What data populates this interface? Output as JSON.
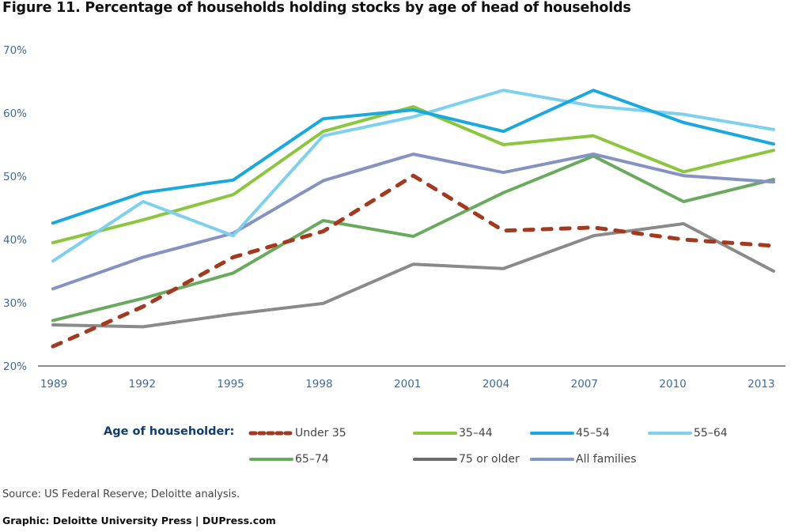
{
  "chart_data": {
    "type": "line",
    "title": "Figure 11. Percentage of households holding stocks by age of head of households",
    "xlabel": "",
    "ylabel": "",
    "x": [
      "1989",
      "1992",
      "1995",
      "1998",
      "2001",
      "2004",
      "2007",
      "2010",
      "2013"
    ],
    "yticks": [
      "20%",
      "30%",
      "40%",
      "50%",
      "60%",
      "70%"
    ],
    "ylim": [
      20,
      70
    ],
    "grid": false,
    "legend_title": "Age of householder:",
    "legend_position": "bottom",
    "series": [
      {
        "name": "Under 35",
        "color": "#a3391f",
        "dashed": true,
        "values": [
          23.1,
          29.4,
          37.2,
          41.3,
          50.1,
          41.4,
          41.9,
          40.0,
          39.0
        ]
      },
      {
        "name": "35–44",
        "color": "#8cc63f",
        "dashed": false,
        "values": [
          39.5,
          43.1,
          47.1,
          57.1,
          61.0,
          55.0,
          56.4,
          50.7,
          54.1
        ]
      },
      {
        "name": "45–54",
        "color": "#1ba8de",
        "dashed": false,
        "values": [
          42.6,
          47.4,
          49.4,
          59.1,
          60.5,
          57.1,
          63.6,
          58.5,
          55.1
        ]
      },
      {
        "name": "55–64",
        "color": "#7dd0ee",
        "dashed": false,
        "values": [
          36.6,
          46.0,
          40.6,
          56.4,
          59.4,
          63.6,
          61.1,
          59.8,
          57.4
        ]
      },
      {
        "name": "65–74",
        "color": "#6aaa5e",
        "dashed": false,
        "values": [
          27.2,
          30.7,
          34.7,
          43.0,
          40.5,
          47.4,
          53.2,
          46.0,
          49.5
        ]
      },
      {
        "name": "75 or older",
        "color": "#8a8a8a",
        "dashed": false,
        "values": [
          26.5,
          26.2,
          28.2,
          29.9,
          36.1,
          35.4,
          40.6,
          42.5,
          35.0
        ]
      },
      {
        "name": "All families",
        "color": "#8492c4",
        "dashed": false,
        "values": [
          32.2,
          37.2,
          41.0,
          49.3,
          53.5,
          50.6,
          53.5,
          50.1,
          49.1
        ]
      }
    ],
    "legend_series_colors": {
      "75 or older": "#6b6b6b"
    }
  },
  "footer": {
    "source": "Source: US Federal Reserve; Deloitte analysis.",
    "credit": "Graphic: Deloitte University Press  |  DUPress.com"
  }
}
